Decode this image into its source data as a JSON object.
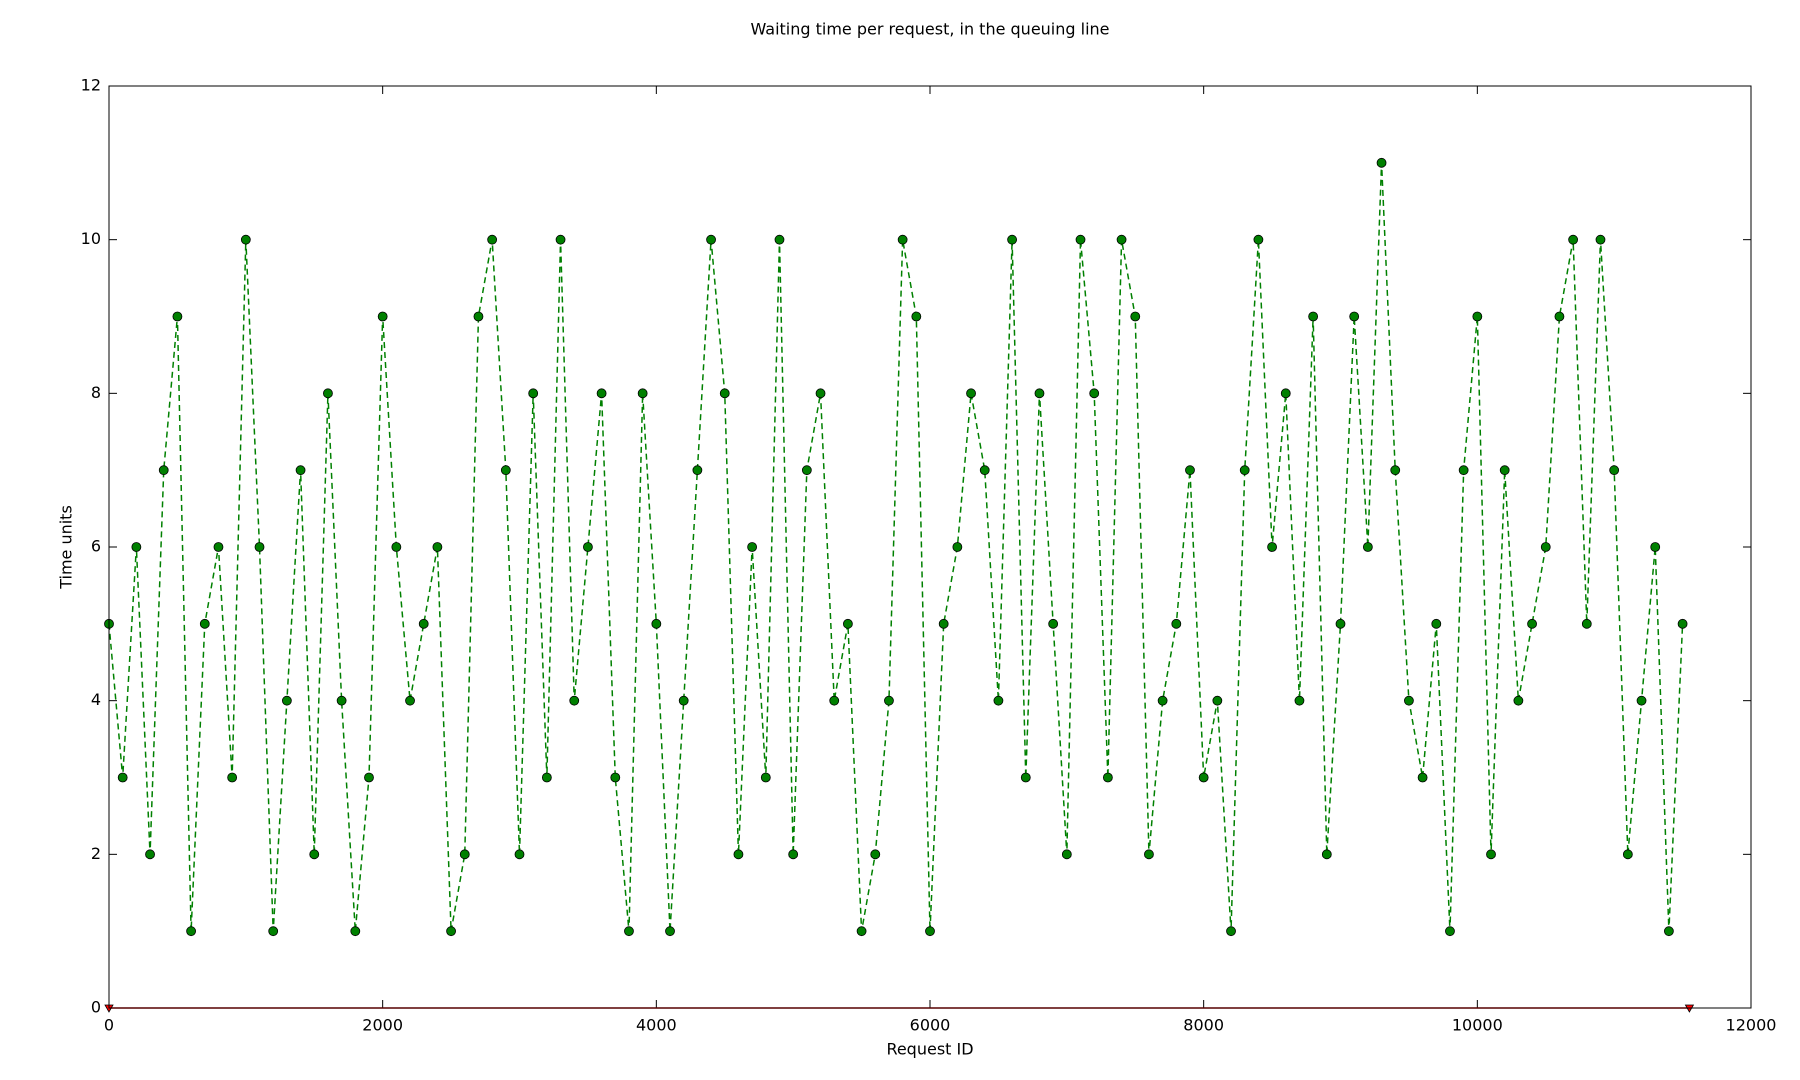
{
  "chart_data": {
    "type": "line",
    "title": "Waiting time per request, in the queuing line",
    "x_label": "Request ID",
    "y_label": "Time units",
    "series": [
      {
        "color": "#008000",
        "line_style": "dashed",
        "marker": "circle",
        "x": [
          0,
          100,
          200,
          300,
          400,
          500,
          600,
          700,
          800,
          900,
          1000,
          1100,
          1200,
          1300,
          1400,
          1500,
          1600,
          1700,
          1800,
          1900,
          2000,
          2100,
          2200,
          2300,
          2400,
          2500,
          2600,
          2700,
          2800,
          2900,
          3000,
          3100,
          3200,
          3300,
          3400,
          3500,
          3600,
          3700,
          3800,
          3900,
          4000,
          4100,
          4200,
          4300,
          4400,
          4500,
          4600,
          4700,
          4800,
          4900,
          5000,
          5100,
          5200,
          5300,
          5400,
          5500,
          5600,
          5700,
          5800,
          5900,
          6000,
          6100,
          6200,
          6300,
          6400,
          6500,
          6600,
          6700,
          6800,
          6900,
          7000,
          7100,
          7200,
          7300,
          7400,
          7500,
          7600,
          7700,
          7800,
          7900,
          8000,
          8100,
          8200,
          8300,
          8400,
          8500,
          8600,
          8700,
          8800,
          8900,
          9000,
          9100,
          9200,
          9300,
          9400,
          9500,
          9600,
          9700,
          9800,
          9900,
          10000,
          10100,
          10200,
          10300,
          10400,
          10500,
          10600,
          10700,
          10800,
          10900,
          11000,
          11100,
          11200,
          11300,
          11400,
          11500
        ],
        "values": [
          5,
          3,
          6,
          2,
          7,
          9,
          1,
          5,
          6,
          3,
          10,
          6,
          1,
          4,
          7,
          2,
          8,
          4,
          1,
          3,
          9,
          6,
          4,
          5,
          6,
          1,
          2,
          9,
          10,
          7,
          2,
          8,
          3,
          10,
          4,
          6,
          8,
          3,
          1,
          8,
          5,
          1,
          4,
          7,
          10,
          8,
          2,
          6,
          3,
          10,
          2,
          7,
          8,
          4,
          5,
          1,
          2,
          4,
          10,
          9,
          1,
          5,
          6,
          8,
          7,
          4,
          10,
          3,
          8,
          5,
          2,
          10,
          8,
          3,
          10,
          9,
          2,
          4,
          5,
          7,
          3,
          4,
          1,
          7,
          10,
          6,
          8,
          4,
          9,
          2,
          5,
          9,
          6,
          11,
          7,
          4,
          3,
          5,
          1,
          7,
          9,
          2,
          7,
          4,
          5,
          6,
          9,
          10,
          5,
          10,
          7,
          2,
          4,
          6,
          1,
          5
        ]
      },
      {
        "color": "#ff0000",
        "line_style": "solid",
        "marker": "triangle",
        "x": [
          0,
          11550
        ],
        "values": [
          0,
          0
        ]
      }
    ],
    "xlim": [
      0,
      12000
    ],
    "xticks": [
      0,
      2000,
      4000,
      6000,
      8000,
      10000,
      12000
    ],
    "ylim": [
      0,
      12
    ],
    "yticks": [
      0,
      2,
      4,
      6,
      8,
      10,
      12
    ],
    "grid": false
  }
}
